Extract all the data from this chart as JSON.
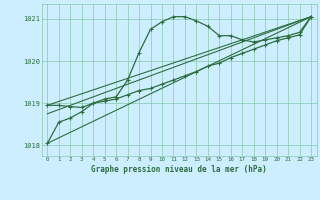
{
  "title": "Graphe pression niveau de la mer (hPa)",
  "bg_color": "#cceeff",
  "grid_color": "#88c8a8",
  "line_color": "#2d6e3e",
  "xlim": [
    -0.5,
    23.5
  ],
  "ylim": [
    1017.75,
    1021.35
  ],
  "xticks": [
    0,
    1,
    2,
    3,
    4,
    5,
    6,
    7,
    8,
    9,
    10,
    11,
    12,
    13,
    14,
    15,
    16,
    17,
    18,
    19,
    20,
    21,
    22,
    23
  ],
  "yticks": [
    1018,
    1019,
    1020,
    1021
  ],
  "series1_x": [
    0,
    1,
    2,
    3,
    4,
    5,
    6,
    7,
    8,
    9,
    10,
    11,
    12,
    13,
    14,
    15,
    16,
    17,
    18,
    19,
    20,
    21,
    22,
    23
  ],
  "series1_y": [
    1018.05,
    1018.55,
    1018.65,
    1018.8,
    1019.0,
    1019.1,
    1019.15,
    1019.55,
    1020.2,
    1020.75,
    1020.93,
    1021.05,
    1021.05,
    1020.95,
    1020.82,
    1020.6,
    1020.6,
    1020.5,
    1020.45,
    1020.5,
    1020.55,
    1020.6,
    1020.68,
    1021.05
  ],
  "series2_x": [
    0,
    1,
    2,
    3,
    4,
    5,
    6,
    7,
    8,
    9,
    10,
    11,
    12,
    13,
    14,
    15,
    16,
    17,
    18,
    19,
    20,
    21,
    22,
    23
  ],
  "series2_y": [
    1018.95,
    1018.95,
    1018.92,
    1018.9,
    1019.0,
    1019.05,
    1019.1,
    1019.2,
    1019.3,
    1019.35,
    1019.45,
    1019.55,
    1019.65,
    1019.75,
    1019.88,
    1019.95,
    1020.08,
    1020.18,
    1020.28,
    1020.38,
    1020.48,
    1020.55,
    1020.62,
    1021.05
  ],
  "line1_x": [
    0,
    23
  ],
  "line1_y": [
    1018.05,
    1021.05
  ],
  "line2_x": [
    0,
    23
  ],
  "line2_y": [
    1018.75,
    1021.05
  ],
  "line3_x": [
    0,
    23
  ],
  "line3_y": [
    1018.95,
    1021.05
  ]
}
